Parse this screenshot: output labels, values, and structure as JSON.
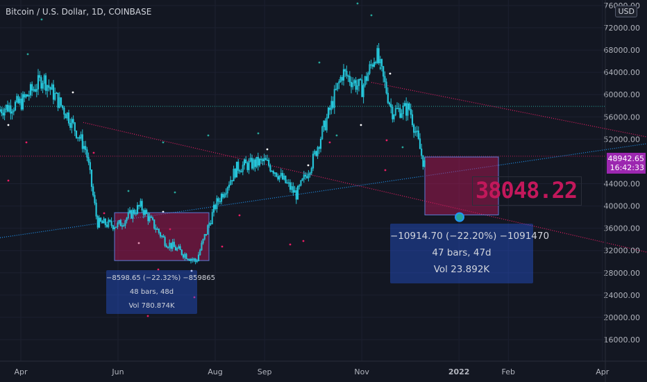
{
  "header": {
    "symbol_title": "Bitcoin / U.S. Dollar, 1D, COINBASE",
    "currency_button": "USD"
  },
  "colors": {
    "background": "#131722",
    "candle": "#26c6da",
    "trendline_pink": "#e91e63",
    "trendline_blue": "#2196f3",
    "dotted_green": "#26a69a",
    "measure_box": "#2962ff"
  },
  "price_axis": {
    "labels": [
      "16000.00",
      "20000.00",
      "24000.00",
      "28000.00",
      "32000.00",
      "36000.00",
      "40000.00",
      "44000.00",
      "48942.65",
      "52000.00",
      "56000.00",
      "60000.00",
      "64000.00",
      "68000.00",
      "72000.00",
      "76000.00"
    ]
  },
  "time_axis": {
    "labels": [
      "Apr",
      "Jun",
      "Aug",
      "Sep",
      "Nov",
      "2022",
      "Feb",
      "Apr"
    ]
  },
  "last_price": {
    "value": "48942.65",
    "countdown": "16:42:33"
  },
  "highlight_value": "38048.22",
  "measure_1": {
    "line1": "−8598.65 (−22.32%) −859865",
    "line2": "48 bars, 48d",
    "line3": "Vol 780.874K"
  },
  "measure_2": {
    "line1": "−10914.70 (−22.20%) −1091470",
    "line2": "47 bars, 47d",
    "line3": "Vol 23.892K"
  },
  "chart_data": {
    "type": "candlestick",
    "title": "Bitcoin / U.S. Dollar, 1D, COINBASE",
    "ylim": [
      14000,
      77000
    ],
    "x": [
      "2021-03-15",
      "2021-04-01",
      "2021-04-15",
      "2021-05-01",
      "2021-05-12",
      "2021-05-19",
      "2021-06-01",
      "2021-06-15",
      "2021-07-01",
      "2021-07-20",
      "2021-08-01",
      "2021-08-15",
      "2021-09-01",
      "2021-09-07",
      "2021-09-21",
      "2021-10-01",
      "2021-10-20",
      "2021-11-01",
      "2021-11-10",
      "2021-11-20",
      "2021-12-01",
      "2021-12-10"
    ],
    "close": [
      57000,
      58500,
      63000,
      56000,
      50000,
      37000,
      36500,
      40000,
      33500,
      30000,
      40000,
      47000,
      48000,
      46500,
      42000,
      48000,
      64000,
      61000,
      67500,
      57000,
      57500,
      47500
    ],
    "last_price": 48942.65,
    "highlight_price": 38048.22
  }
}
